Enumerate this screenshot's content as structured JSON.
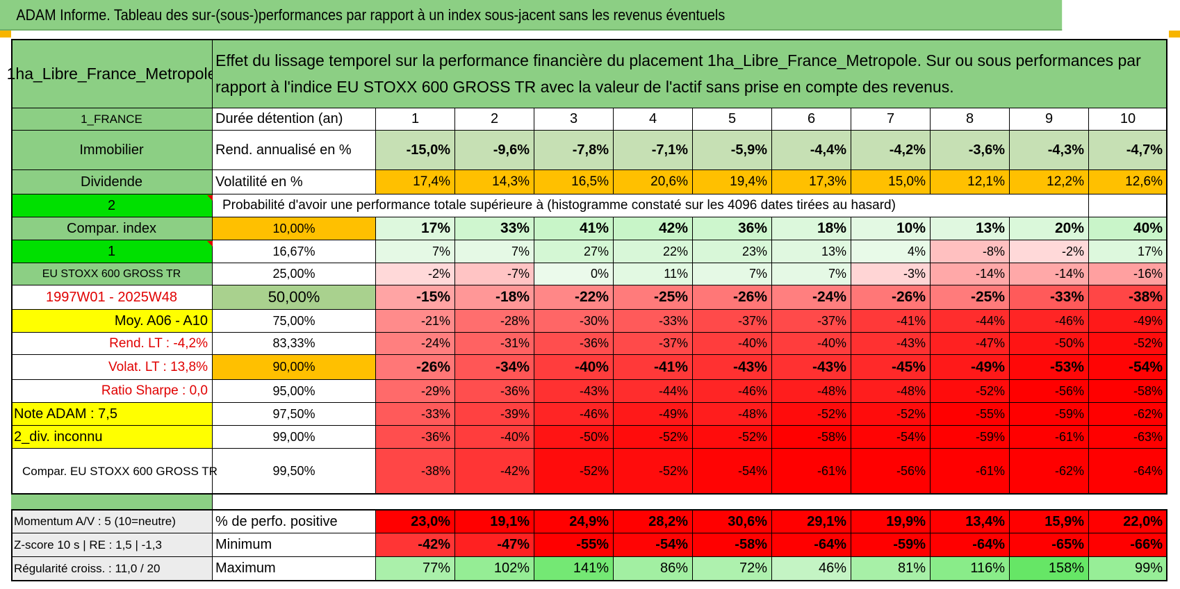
{
  "banner": "ADAM Informe. Tableau des sur-(sous-)performances par rapport à un index sous-jacent sans les revenus éventuels",
  "header": {
    "fund_name": "1ha_Libre_France_Metropole",
    "description": "Effet du lissage temporel sur la performance financière du placement 1ha_Libre_France_Metropole. Sur ou sous performances par rapport à l'indice EU STOXX 600 GROSS TR avec la valeur de l'actif sans prise en compte des revenus."
  },
  "left": {
    "country": "1_FRANCE",
    "asset_class": "Immobilier",
    "income_type": "Dividende",
    "selector_2": "2",
    "compar_index": "Compar. index",
    "selector_1": "1",
    "index_name": "EU STOXX 600 GROSS TR",
    "period": "1997W01 - 2025W48",
    "moy": "Moy. A06 - A10",
    "rend_lt": "Rend. LT :    -4,2%",
    "volat_lt": "Volat. LT :    13,8%",
    "sharpe": "Ratio Sharpe :    0,0",
    "note": "Note ADAM : 7,5",
    "div": "2_div. inconnu",
    "compar": "Compar. EU STOXX 600 GROSS TR",
    "momentum": "Momentum A/V : 5 (10=neutre)",
    "zscore": "Z-score 10 s | RE : 1,5 | -1,3",
    "regularite": "Régularité croiss. : 11,0 / 20"
  },
  "labels": {
    "duree": "Durée détention (an)",
    "rend": "Rend. annualisé en %",
    "vol": "Volatilité en %",
    "proba": "Probabilité d'avoir une performance totale supérieure à (histogramme constaté sur les 4096 dates tirées au hasard)",
    "pct_pos": "% de perfo. positive",
    "min": "Minimum",
    "max": "Maximum"
  },
  "years": [
    "1",
    "2",
    "3",
    "4",
    "5",
    "6",
    "7",
    "8",
    "9",
    "10"
  ],
  "rend": [
    "-15,0%",
    "-9,6%",
    "-7,8%",
    "-7,1%",
    "-5,9%",
    "-4,4%",
    "-4,2%",
    "-3,6%",
    "-4,3%",
    "-4,7%"
  ],
  "vol": [
    "17,4%",
    "14,3%",
    "16,5%",
    "20,6%",
    "19,4%",
    "17,3%",
    "15,0%",
    "12,1%",
    "12,2%",
    "12,6%"
  ],
  "percentiles": [
    {
      "p": "10,00%",
      "vals": [
        "17%",
        "33%",
        "41%",
        "42%",
        "36%",
        "18%",
        "10%",
        "13%",
        "20%",
        "40%"
      ]
    },
    {
      "p": "16,67%",
      "vals": [
        "7%",
        "7%",
        "27%",
        "22%",
        "23%",
        "13%",
        "4%",
        "-8%",
        "-2%",
        "17%"
      ]
    },
    {
      "p": "25,00%",
      "vals": [
        "-2%",
        "-7%",
        "0%",
        "11%",
        "7%",
        "7%",
        "-3%",
        "-14%",
        "-14%",
        "-16%"
      ]
    },
    {
      "p": "50,00%",
      "vals": [
        "-15%",
        "-18%",
        "-22%",
        "-25%",
        "-26%",
        "-24%",
        "-26%",
        "-25%",
        "-33%",
        "-38%"
      ]
    },
    {
      "p": "75,00%",
      "vals": [
        "-21%",
        "-28%",
        "-30%",
        "-33%",
        "-37%",
        "-37%",
        "-41%",
        "-44%",
        "-46%",
        "-49%"
      ]
    },
    {
      "p": "83,33%",
      "vals": [
        "-24%",
        "-31%",
        "-36%",
        "-37%",
        "-40%",
        "-40%",
        "-43%",
        "-47%",
        "-50%",
        "-52%"
      ]
    },
    {
      "p": "90,00%",
      "vals": [
        "-26%",
        "-34%",
        "-40%",
        "-41%",
        "-43%",
        "-43%",
        "-45%",
        "-49%",
        "-53%",
        "-54%"
      ]
    },
    {
      "p": "95,00%",
      "vals": [
        "-29%",
        "-36%",
        "-43%",
        "-44%",
        "-46%",
        "-48%",
        "-48%",
        "-52%",
        "-56%",
        "-58%"
      ]
    },
    {
      "p": "97,50%",
      "vals": [
        "-33%",
        "-39%",
        "-46%",
        "-49%",
        "-48%",
        "-52%",
        "-52%",
        "-55%",
        "-59%",
        "-62%"
      ]
    },
    {
      "p": "99,00%",
      "vals": [
        "-36%",
        "-40%",
        "-50%",
        "-52%",
        "-52%",
        "-58%",
        "-54%",
        "-59%",
        "-61%",
        "-63%"
      ]
    },
    {
      "p": "99,50%",
      "vals": [
        "-38%",
        "-42%",
        "-52%",
        "-52%",
        "-54%",
        "-61%",
        "-56%",
        "-61%",
        "-62%",
        "-64%"
      ]
    }
  ],
  "pct_pos": [
    "23,0%",
    "19,1%",
    "24,9%",
    "28,2%",
    "30,6%",
    "29,1%",
    "19,9%",
    "13,4%",
    "15,9%",
    "22,0%"
  ],
  "min": [
    "-42%",
    "-47%",
    "-55%",
    "-54%",
    "-58%",
    "-64%",
    "-59%",
    "-64%",
    "-65%",
    "-66%"
  ],
  "max": [
    "77%",
    "102%",
    "141%",
    "86%",
    "72%",
    "46%",
    "81%",
    "116%",
    "158%",
    "99%"
  ],
  "colors": {
    "green_header": "#8ccf84",
    "bright_green": "#00e000",
    "yellow": "#ffff00",
    "orange": "#ffc000",
    "red_text": "#e00000",
    "light_green_rend": "#c6e0b4"
  }
}
